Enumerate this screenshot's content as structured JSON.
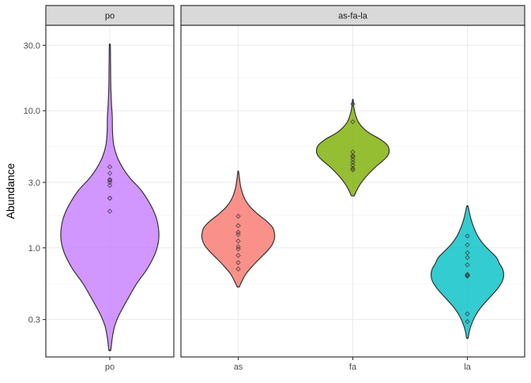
{
  "chart_data": {
    "type": "violin",
    "ylabel": "Abundance",
    "xlabel": "",
    "y_scale": "log10",
    "ylim": [
      0.16,
      42
    ],
    "yticks": [
      0.3,
      1.0,
      3.0,
      10.0,
      30.0
    ],
    "ytick_labels": [
      "0.3",
      "1.0",
      "3.0",
      "10.0",
      "30.0"
    ],
    "grid": true,
    "panels": [
      {
        "title": "po",
        "categories": [
          "po"
        ],
        "violins": [
          {
            "category": "po",
            "color": "#C77CFF",
            "min": 0.18,
            "max": 30.0,
            "profile": [
              [
                0.18,
                0.02
              ],
              [
                0.22,
                0.05
              ],
              [
                0.27,
                0.1
              ],
              [
                0.33,
                0.2
              ],
              [
                0.42,
                0.36
              ],
              [
                0.55,
                0.55
              ],
              [
                0.7,
                0.76
              ],
              [
                0.9,
                0.92
              ],
              [
                1.1,
                0.99
              ],
              [
                1.3,
                1.0
              ],
              [
                1.6,
                0.96
              ],
              [
                2.0,
                0.85
              ],
              [
                2.6,
                0.65
              ],
              [
                3.2,
                0.42
              ],
              [
                3.8,
                0.27
              ],
              [
                4.6,
                0.15
              ],
              [
                5.6,
                0.08
              ],
              [
                7.0,
                0.055
              ],
              [
                9.0,
                0.05
              ],
              [
                11.0,
                0.035
              ],
              [
                15.0,
                0.02
              ],
              [
                22.0,
                0.015
              ],
              [
                30.0,
                0.01
              ]
            ],
            "points": [
              1.85,
              2.3,
              2.3,
              2.85,
              3.0,
              3.1,
              3.15,
              3.5,
              3.9
            ]
          }
        ]
      },
      {
        "title": "as-fa-la",
        "categories": [
          "as",
          "fa",
          "la"
        ],
        "violins": [
          {
            "category": "as",
            "color": "#F8766D",
            "min": 0.52,
            "max": 3.6,
            "profile": [
              [
                0.52,
                0.03
              ],
              [
                0.57,
                0.1
              ],
              [
                0.65,
                0.22
              ],
              [
                0.75,
                0.42
              ],
              [
                0.85,
                0.62
              ],
              [
                0.95,
                0.8
              ],
              [
                1.05,
                0.93
              ],
              [
                1.15,
                0.99
              ],
              [
                1.25,
                1.0
              ],
              [
                1.4,
                0.95
              ],
              [
                1.55,
                0.8
              ],
              [
                1.75,
                0.55
              ],
              [
                2.0,
                0.32
              ],
              [
                2.3,
                0.17
              ],
              [
                2.7,
                0.08
              ],
              [
                3.1,
                0.04
              ],
              [
                3.6,
                0.01
              ]
            ],
            "points": [
              0.7,
              0.78,
              0.88,
              0.98,
              1.02,
              1.12,
              1.25,
              1.3,
              1.45,
              1.7
            ]
          },
          {
            "category": "fa",
            "color": "#7CAE00",
            "min": 2.4,
            "max": 12.0,
            "profile": [
              [
                2.4,
                0.04
              ],
              [
                2.6,
                0.1
              ],
              [
                2.9,
                0.2
              ],
              [
                3.2,
                0.32
              ],
              [
                3.5,
                0.45
              ],
              [
                3.9,
                0.63
              ],
              [
                4.3,
                0.82
              ],
              [
                4.7,
                0.96
              ],
              [
                5.1,
                1.0
              ],
              [
                5.6,
                0.95
              ],
              [
                6.2,
                0.75
              ],
              [
                6.8,
                0.48
              ],
              [
                7.5,
                0.28
              ],
              [
                8.3,
                0.15
              ],
              [
                9.2,
                0.08
              ],
              [
                10.5,
                0.03
              ],
              [
                12.0,
                0.01
              ]
            ],
            "points": [
              3.7,
              3.8,
              4.0,
              4.2,
              4.4,
              4.6,
              4.7,
              5.0,
              8.3,
              11.2
            ]
          },
          {
            "category": "la",
            "color": "#00BFC4",
            "min": 0.22,
            "max": 2.0,
            "profile": [
              [
                0.22,
                0.02
              ],
              [
                0.25,
                0.06
              ],
              [
                0.28,
                0.12
              ],
              [
                0.32,
                0.22
              ],
              [
                0.37,
                0.38
              ],
              [
                0.43,
                0.6
              ],
              [
                0.5,
                0.82
              ],
              [
                0.57,
                0.96
              ],
              [
                0.63,
                1.0
              ],
              [
                0.7,
                0.97
              ],
              [
                0.77,
                0.88
              ],
              [
                0.85,
                0.8
              ],
              [
                0.95,
                0.62
              ],
              [
                1.05,
                0.46
              ],
              [
                1.2,
                0.3
              ],
              [
                1.4,
                0.18
              ],
              [
                1.65,
                0.09
              ],
              [
                2.0,
                0.02
              ]
            ],
            "points": [
              0.29,
              0.33,
              0.62,
              0.63,
              0.64,
              0.75,
              0.85,
              0.92,
              1.05,
              1.22
            ]
          }
        ]
      }
    ]
  }
}
